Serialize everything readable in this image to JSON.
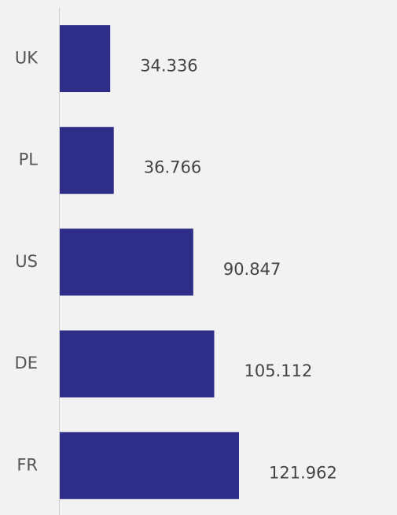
{
  "chart_data": {
    "type": "bar",
    "orientation": "horizontal",
    "categories": [
      "UK",
      "PL",
      "US",
      "DE",
      "FR"
    ],
    "values": [
      34.336,
      36.766,
      90.847,
      105.112,
      121.962
    ],
    "color": "#2e2d87"
  }
}
